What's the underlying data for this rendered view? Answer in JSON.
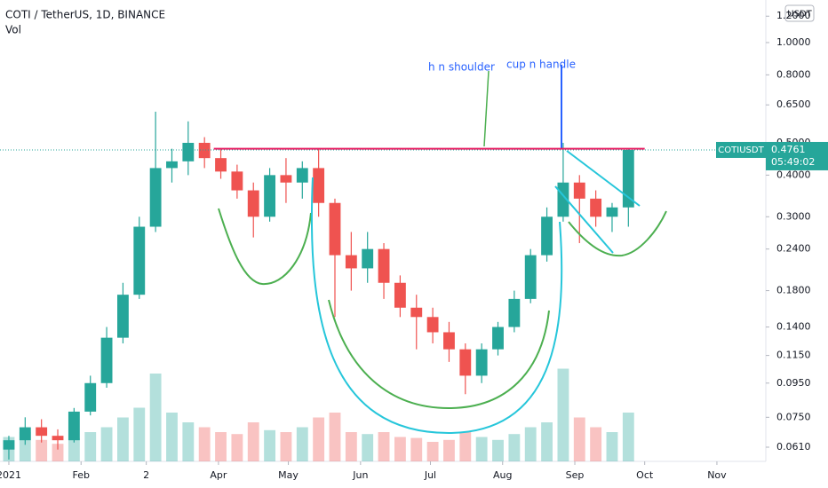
{
  "chart_data": {
    "type": "candlestick",
    "title": "COTI / TetherUS, 1D, BINANCE",
    "indicator": "Vol",
    "symbol": "COTIUSDT",
    "currency": "USDT",
    "countdown": "05:49:02",
    "log_scale": true,
    "grid": false,
    "up_color": "#26a69a",
    "down_color": "#ef5350",
    "x": [
      0,
      7,
      14,
      21,
      28,
      35,
      42,
      49,
      56,
      63,
      70,
      77,
      84,
      91,
      98,
      105,
      112,
      119,
      126,
      133,
      140,
      147,
      154,
      161,
      168,
      175,
      182,
      189,
      196,
      203,
      210,
      217,
      224,
      231,
      238,
      245,
      252,
      259,
      266
    ],
    "open": [
      0.06,
      0.064,
      0.07,
      0.066,
      0.064,
      0.078,
      0.095,
      0.13,
      0.175,
      0.28,
      0.42,
      0.44,
      0.5,
      0.45,
      0.41,
      0.36,
      0.3,
      0.4,
      0.38,
      0.42,
      0.33,
      0.23,
      0.21,
      0.24,
      0.19,
      0.16,
      0.15,
      0.135,
      0.12,
      0.1,
      0.12,
      0.14,
      0.17,
      0.23,
      0.3,
      0.38,
      0.34,
      0.3,
      0.32
    ],
    "high": [
      0.066,
      0.075,
      0.074,
      0.069,
      0.08,
      0.1,
      0.14,
      0.19,
      0.3,
      0.62,
      0.48,
      0.58,
      0.52,
      0.48,
      0.43,
      0.38,
      0.42,
      0.45,
      0.44,
      0.48,
      0.34,
      0.27,
      0.27,
      0.25,
      0.2,
      0.175,
      0.16,
      0.145,
      0.125,
      0.125,
      0.145,
      0.18,
      0.24,
      0.32,
      0.5,
      0.4,
      0.36,
      0.33,
      0.48
    ],
    "low": [
      0.056,
      0.062,
      0.063,
      0.06,
      0.063,
      0.076,
      0.092,
      0.125,
      0.17,
      0.27,
      0.38,
      0.4,
      0.42,
      0.39,
      0.34,
      0.26,
      0.29,
      0.33,
      0.34,
      0.3,
      0.15,
      0.18,
      0.19,
      0.17,
      0.15,
      0.12,
      0.125,
      0.11,
      0.088,
      0.095,
      0.115,
      0.135,
      0.165,
      0.22,
      0.29,
      0.25,
      0.28,
      0.27,
      0.28
    ],
    "close": [
      0.064,
      0.07,
      0.066,
      0.064,
      0.078,
      0.095,
      0.13,
      0.175,
      0.28,
      0.42,
      0.44,
      0.5,
      0.45,
      0.41,
      0.36,
      0.3,
      0.4,
      0.38,
      0.42,
      0.33,
      0.23,
      0.21,
      0.24,
      0.19,
      0.16,
      0.15,
      0.135,
      0.12,
      0.1,
      0.12,
      0.14,
      0.17,
      0.23,
      0.3,
      0.38,
      0.34,
      0.3,
      0.32,
      0.4761
    ],
    "volume": [
      25,
      30,
      22,
      18,
      24,
      30,
      35,
      45,
      55,
      90,
      50,
      40,
      35,
      30,
      28,
      40,
      32,
      30,
      35,
      45,
      50,
      30,
      28,
      30,
      25,
      24,
      20,
      22,
      30,
      25,
      22,
      28,
      35,
      40,
      95,
      45,
      35,
      30,
      50
    ],
    "vlim": [
      0,
      100
    ],
    "ylim": [
      0.0553,
      1.342
    ],
    "yticks": [
      {
        "value": 1.2,
        "label": "1.2000"
      },
      {
        "value": 1.0,
        "label": "1.0000"
      },
      {
        "value": 0.8,
        "label": "0.8000"
      },
      {
        "value": 0.65,
        "label": "0.6500"
      },
      {
        "value": 0.5,
        "label": "0.5000"
      },
      {
        "value": 0.4,
        "label": "0.4000"
      },
      {
        "value": 0.3,
        "label": "0.3000"
      },
      {
        "value": 0.24,
        "label": "0.2400"
      },
      {
        "value": 0.18,
        "label": "0.1800"
      },
      {
        "value": 0.14,
        "label": "0.1400"
      },
      {
        "value": 0.115,
        "label": "0.1150"
      },
      {
        "value": 0.095,
        "label": "0.0950"
      },
      {
        "value": 0.075,
        "label": "0.0750"
      },
      {
        "value": 0.061,
        "label": "0.0610"
      }
    ],
    "xlim": [
      -3.8,
      325
    ],
    "xticks": [
      {
        "value": 0,
        "label": "2021"
      },
      {
        "value": 31,
        "label": "Feb"
      },
      {
        "value": 59,
        "label": "2"
      },
      {
        "value": 90,
        "label": "Apr"
      },
      {
        "value": 120,
        "label": "May"
      },
      {
        "value": 151,
        "label": "Jun"
      },
      {
        "value": 181,
        "label": "Jul"
      },
      {
        "value": 212,
        "label": "Aug"
      },
      {
        "value": 243,
        "label": "Sep"
      },
      {
        "value": 273,
        "label": "Oct"
      },
      {
        "value": 304,
        "label": "Nov"
      }
    ],
    "resistance": 0.48,
    "annotations": [
      "h n shoulder",
      "cup n handle"
    ]
  }
}
